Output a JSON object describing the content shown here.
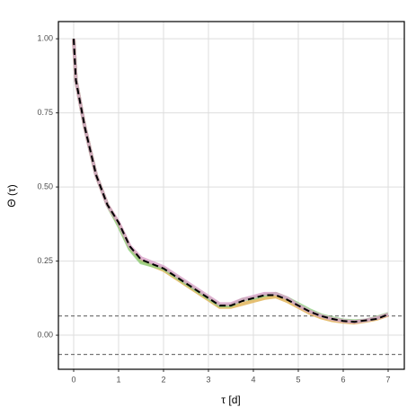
{
  "chart_data": {
    "type": "line",
    "xlabel": "τ [d]",
    "ylabel": "Θ (τ)",
    "x": [
      0,
      0.05,
      0.25,
      0.5,
      0.75,
      1.0,
      1.25,
      1.5,
      1.75,
      2.0,
      2.25,
      2.5,
      2.75,
      3.0,
      3.25,
      3.5,
      3.75,
      4.0,
      4.25,
      4.5,
      4.75,
      5.0,
      5.25,
      5.5,
      5.75,
      6.0,
      6.25,
      6.5,
      6.75,
      7.0
    ],
    "series": [
      {
        "color": "#e0b050",
        "width": 4,
        "values": [
          1.0,
          0.86,
          0.7,
          0.54,
          0.44,
          0.375,
          0.295,
          0.25,
          0.235,
          0.22,
          0.195,
          0.17,
          0.145,
          0.12,
          0.095,
          0.095,
          0.105,
          0.115,
          0.125,
          0.13,
          0.115,
          0.095,
          0.075,
          0.06,
          0.05,
          0.045,
          0.042,
          0.048,
          0.055,
          0.068
        ]
      },
      {
        "color": "#90d080",
        "width": 4,
        "values": [
          1.0,
          0.86,
          0.7,
          0.54,
          0.44,
          0.37,
          0.29,
          0.245,
          0.235,
          0.225,
          0.2,
          0.175,
          0.15,
          0.125,
          0.1,
          0.1,
          0.12,
          0.125,
          0.135,
          0.14,
          0.125,
          0.105,
          0.085,
          0.068,
          0.058,
          0.05,
          0.048,
          0.05,
          0.06,
          0.072
        ]
      },
      {
        "color": "#d8a0c8",
        "width": 4,
        "values": [
          1.0,
          0.86,
          0.7,
          0.54,
          0.44,
          0.38,
          0.3,
          0.26,
          0.245,
          0.23,
          0.205,
          0.18,
          0.155,
          0.13,
          0.105,
          0.105,
          0.12,
          0.13,
          0.14,
          0.14,
          0.125,
          0.1,
          0.08,
          0.065,
          0.055,
          0.048,
          0.045,
          0.05,
          0.058,
          0.07
        ]
      },
      {
        "color": "#000000",
        "width": 2,
        "dash": true,
        "values": [
          1.0,
          0.86,
          0.7,
          0.54,
          0.44,
          0.38,
          0.3,
          0.255,
          0.24,
          0.225,
          0.2,
          0.175,
          0.15,
          0.125,
          0.1,
          0.1,
          0.115,
          0.125,
          0.135,
          0.135,
          0.12,
          0.1,
          0.08,
          0.065,
          0.055,
          0.048,
          0.045,
          0.05,
          0.055,
          0.07
        ]
      }
    ],
    "hlines": [
      0.065,
      -0.065
    ],
    "xlim": [
      -0.34,
      7.36
    ],
    "ylim": [
      -0.115,
      1.058
    ],
    "xticks": [
      0,
      1,
      2,
      3,
      4,
      5,
      6,
      7
    ],
    "yticks": [
      {
        "value": 0,
        "label": "0.00"
      },
      {
        "value": 0.25,
        "label": "0.25"
      },
      {
        "value": 0.5,
        "label": "0.50"
      },
      {
        "value": 0.75,
        "label": "0.75"
      },
      {
        "value": 1,
        "label": "1.00"
      }
    ],
    "grid": true
  }
}
